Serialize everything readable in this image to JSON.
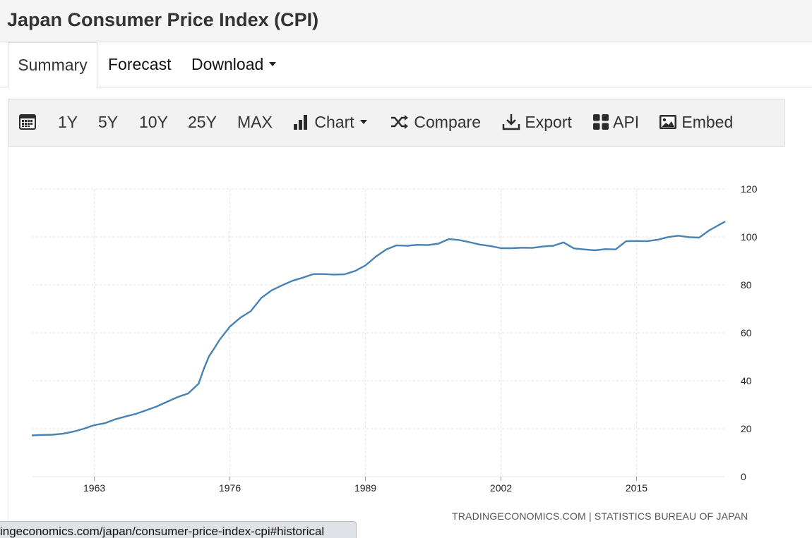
{
  "page": {
    "title": "Japan Consumer Price Index (CPI)"
  },
  "tabs": [
    {
      "label": "Summary",
      "active": true
    },
    {
      "label": "Forecast",
      "active": false
    },
    {
      "label": "Download",
      "active": false
    }
  ],
  "toolbar": {
    "calendar_icon": "calendar-icon",
    "ranges": [
      "1Y",
      "5Y",
      "10Y",
      "25Y",
      "MAX"
    ],
    "chart_label": "Chart",
    "compare_label": "Compare",
    "export_label": "Export",
    "api_label": "API",
    "embed_label": "Embed"
  },
  "source_text": "TRADINGECONOMICS.COM | STATISTICS BUREAU OF JAPAN",
  "status_url": "ingeconomics.com/japan/consumer-price-index-cpi#historical",
  "colors": {
    "line": "#4682b4",
    "grid": "#e3e3e3",
    "toolbar_bg": "#f2f2f2"
  },
  "chart_data": {
    "type": "line",
    "title": "",
    "xlabel": "",
    "ylabel": "",
    "xlim": [
      1957,
      2023.5
    ],
    "ylim": [
      0,
      120
    ],
    "x_ticks": [
      1963,
      1976,
      1989,
      2002,
      2015
    ],
    "y_ticks": [
      0,
      20,
      40,
      60,
      80,
      100,
      120
    ],
    "y_axis_position": "right",
    "grid": true,
    "legend": "none",
    "series": [
      {
        "x": [
          1957,
          1958,
          1959,
          1960,
          1961,
          1962,
          1963,
          1964,
          1965,
          1966,
          1967,
          1968,
          1969,
          1970,
          1971,
          1972,
          1973,
          1973.5,
          1974,
          1974.5,
          1975,
          1976,
          1977,
          1978,
          1979,
          1980,
          1981,
          1982,
          1983,
          1984,
          1985,
          1986,
          1987,
          1988,
          1989,
          1990,
          1991,
          1992,
          1993,
          1994,
          1995,
          1996,
          1997,
          1998,
          1999,
          2000,
          2001,
          2002,
          2003,
          2004,
          2005,
          2006,
          2007,
          2008,
          2009,
          2010,
          2011,
          2012,
          2013,
          2014,
          2015,
          2016,
          2017,
          2018,
          2019,
          2020,
          2021,
          2022,
          2023.5
        ],
        "values": [
          17.2,
          17.4,
          17.5,
          17.9,
          18.8,
          20.0,
          21.5,
          22.3,
          23.9,
          25.1,
          26.2,
          27.7,
          29.3,
          31.3,
          33.2,
          34.7,
          38.8,
          45.0,
          50.2,
          53.5,
          57.0,
          62.6,
          66.3,
          69.0,
          74.5,
          77.7,
          79.8,
          81.7,
          83.0,
          84.5,
          84.5,
          84.3,
          84.4,
          85.8,
          88.1,
          91.8,
          94.8,
          96.5,
          96.3,
          96.7,
          96.6,
          97.2,
          99.1,
          98.7,
          97.8,
          96.8,
          96.2,
          95.3,
          95.3,
          95.5,
          95.4,
          96.0,
          96.3,
          97.7,
          95.2,
          94.8,
          94.4,
          94.9,
          94.8,
          98.2,
          98.3,
          98.2,
          98.8,
          99.9,
          100.5,
          99.9,
          99.7,
          102.8,
          106.4
        ]
      }
    ]
  }
}
